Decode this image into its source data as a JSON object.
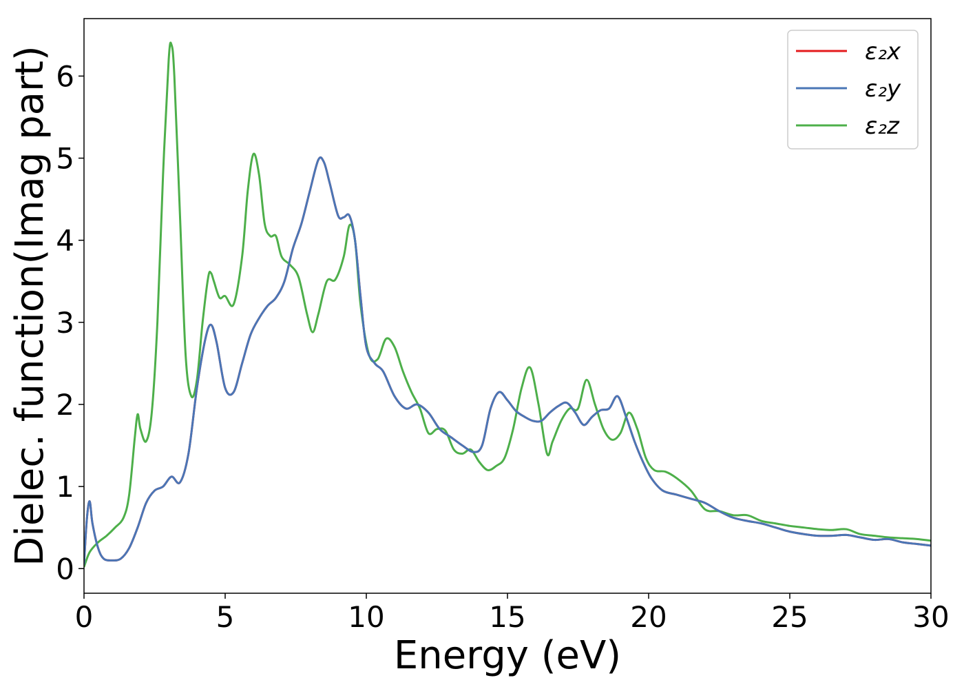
{
  "chart_data": {
    "type": "line",
    "xlabel": "Energy (eV)",
    "ylabel": "Dielec. function(Imag part)",
    "xlim": [
      0,
      30
    ],
    "ylim": [
      -0.3,
      6.7
    ],
    "xticks": [
      0,
      5,
      10,
      15,
      20,
      25,
      30
    ],
    "yticks": [
      0,
      1,
      2,
      3,
      4,
      5,
      6
    ],
    "grid": false,
    "legend_position": "top-right",
    "series": [
      {
        "name": "ε₂x",
        "color": "#e41a1c",
        "x": [
          0,
          0.1,
          0.2,
          0.3,
          0.5,
          0.7,
          1.0,
          1.3,
          1.6,
          1.9,
          2.2,
          2.5,
          2.8,
          3.1,
          3.4,
          3.7,
          4.0,
          4.3,
          4.5,
          4.7,
          5.0,
          5.3,
          5.6,
          5.9,
          6.2,
          6.5,
          6.8,
          7.1,
          7.4,
          7.7,
          8.0,
          8.3,
          8.5,
          8.7,
          9.0,
          9.2,
          9.4,
          9.6,
          9.8,
          10.0,
          10.3,
          10.6,
          11.0,
          11.4,
          11.8,
          12.2,
          12.6,
          13.0,
          13.4,
          13.8,
          14.1,
          14.4,
          14.7,
          15.0,
          15.3,
          15.6,
          15.9,
          16.2,
          16.5,
          16.8,
          17.1,
          17.4,
          17.7,
          18.0,
          18.3,
          18.6,
          18.9,
          19.2,
          19.5,
          19.8,
          20.1,
          20.5,
          21.0,
          21.5,
          22.0,
          22.5,
          23.0,
          23.5,
          24.0,
          24.5,
          25.0,
          25.5,
          26.0,
          26.5,
          27.0,
          27.5,
          28.0,
          28.5,
          29.0,
          29.5,
          30.0
        ],
        "y": [
          0.05,
          0.6,
          0.82,
          0.55,
          0.25,
          0.12,
          0.1,
          0.12,
          0.25,
          0.5,
          0.8,
          0.95,
          1.0,
          1.12,
          1.05,
          1.4,
          2.2,
          2.8,
          2.97,
          2.75,
          2.2,
          2.15,
          2.5,
          2.85,
          3.05,
          3.2,
          3.3,
          3.5,
          3.9,
          4.2,
          4.6,
          4.98,
          4.95,
          4.7,
          4.3,
          4.28,
          4.3,
          4.0,
          3.3,
          2.7,
          2.5,
          2.4,
          2.1,
          1.95,
          2.0,
          1.9,
          1.7,
          1.6,
          1.5,
          1.42,
          1.5,
          1.95,
          2.15,
          2.05,
          1.92,
          1.85,
          1.8,
          1.8,
          1.9,
          1.98,
          2.02,
          1.9,
          1.75,
          1.85,
          1.93,
          1.95,
          2.1,
          1.85,
          1.55,
          1.3,
          1.1,
          0.95,
          0.9,
          0.85,
          0.8,
          0.7,
          0.62,
          0.58,
          0.55,
          0.5,
          0.45,
          0.42,
          0.4,
          0.4,
          0.41,
          0.38,
          0.35,
          0.36,
          0.32,
          0.3,
          0.28
        ]
      },
      {
        "name": "ε₂y",
        "color": "#4a76b6",
        "x": [
          0,
          0.1,
          0.2,
          0.3,
          0.5,
          0.7,
          1.0,
          1.3,
          1.6,
          1.9,
          2.2,
          2.5,
          2.8,
          3.1,
          3.4,
          3.7,
          4.0,
          4.3,
          4.5,
          4.7,
          5.0,
          5.3,
          5.6,
          5.9,
          6.2,
          6.5,
          6.8,
          7.1,
          7.4,
          7.7,
          8.0,
          8.3,
          8.5,
          8.7,
          9.0,
          9.2,
          9.4,
          9.6,
          9.8,
          10.0,
          10.3,
          10.6,
          11.0,
          11.4,
          11.8,
          12.2,
          12.6,
          13.0,
          13.4,
          13.8,
          14.1,
          14.4,
          14.7,
          15.0,
          15.3,
          15.6,
          15.9,
          16.2,
          16.5,
          16.8,
          17.1,
          17.4,
          17.7,
          18.0,
          18.3,
          18.6,
          18.9,
          19.2,
          19.5,
          19.8,
          20.1,
          20.5,
          21.0,
          21.5,
          22.0,
          22.5,
          23.0,
          23.5,
          24.0,
          24.5,
          25.0,
          25.5,
          26.0,
          26.5,
          27.0,
          27.5,
          28.0,
          28.5,
          29.0,
          29.5,
          30.0
        ],
        "y": [
          0.05,
          0.6,
          0.82,
          0.55,
          0.25,
          0.12,
          0.1,
          0.12,
          0.25,
          0.5,
          0.8,
          0.95,
          1.0,
          1.12,
          1.05,
          1.4,
          2.2,
          2.8,
          2.97,
          2.75,
          2.2,
          2.15,
          2.5,
          2.85,
          3.05,
          3.2,
          3.3,
          3.5,
          3.9,
          4.2,
          4.6,
          4.98,
          4.95,
          4.7,
          4.3,
          4.28,
          4.3,
          4.0,
          3.3,
          2.7,
          2.5,
          2.4,
          2.1,
          1.95,
          2.0,
          1.9,
          1.7,
          1.6,
          1.5,
          1.42,
          1.5,
          1.95,
          2.15,
          2.05,
          1.92,
          1.85,
          1.8,
          1.8,
          1.9,
          1.98,
          2.02,
          1.9,
          1.75,
          1.85,
          1.93,
          1.95,
          2.1,
          1.85,
          1.55,
          1.3,
          1.1,
          0.95,
          0.9,
          0.85,
          0.8,
          0.7,
          0.62,
          0.58,
          0.55,
          0.5,
          0.45,
          0.42,
          0.4,
          0.4,
          0.41,
          0.38,
          0.35,
          0.36,
          0.32,
          0.3,
          0.28
        ]
      },
      {
        "name": "ε₂z",
        "color": "#4daf4a",
        "x": [
          0,
          0.2,
          0.5,
          0.8,
          1.1,
          1.4,
          1.6,
          1.8,
          1.9,
          2.0,
          2.2,
          2.4,
          2.6,
          2.8,
          3.0,
          3.1,
          3.2,
          3.4,
          3.6,
          3.8,
          4.0,
          4.2,
          4.4,
          4.5,
          4.6,
          4.8,
          5.0,
          5.3,
          5.6,
          5.8,
          6.0,
          6.2,
          6.4,
          6.6,
          6.8,
          7.0,
          7.3,
          7.6,
          7.9,
          8.1,
          8.3,
          8.6,
          8.9,
          9.2,
          9.4,
          9.6,
          9.8,
          10.1,
          10.4,
          10.7,
          11.0,
          11.3,
          11.6,
          11.9,
          12.2,
          12.5,
          12.8,
          13.1,
          13.4,
          13.7,
          14.0,
          14.3,
          14.6,
          14.9,
          15.2,
          15.5,
          15.8,
          16.1,
          16.4,
          16.6,
          16.9,
          17.2,
          17.5,
          17.8,
          18.1,
          18.4,
          18.7,
          19.0,
          19.3,
          19.6,
          19.9,
          20.2,
          20.6,
          21.0,
          21.5,
          22.0,
          22.5,
          23.0,
          23.5,
          24.0,
          24.5,
          25.0,
          25.5,
          26.0,
          26.5,
          27.0,
          27.5,
          28.0,
          28.5,
          29.0,
          29.5,
          30.0
        ],
        "y": [
          0.02,
          0.2,
          0.32,
          0.4,
          0.5,
          0.62,
          0.9,
          1.6,
          1.88,
          1.7,
          1.55,
          1.9,
          3.0,
          4.8,
          6.2,
          6.38,
          6.0,
          4.3,
          2.6,
          2.1,
          2.3,
          3.0,
          3.55,
          3.6,
          3.5,
          3.3,
          3.32,
          3.22,
          3.8,
          4.6,
          5.05,
          4.8,
          4.2,
          4.05,
          4.05,
          3.8,
          3.7,
          3.55,
          3.1,
          2.88,
          3.1,
          3.5,
          3.52,
          3.8,
          4.18,
          4.0,
          3.2,
          2.6,
          2.55,
          2.8,
          2.7,
          2.4,
          2.15,
          1.95,
          1.65,
          1.7,
          1.68,
          1.45,
          1.4,
          1.45,
          1.3,
          1.2,
          1.25,
          1.35,
          1.7,
          2.2,
          2.45,
          2.0,
          1.4,
          1.55,
          1.8,
          1.95,
          1.95,
          2.3,
          2.0,
          1.7,
          1.57,
          1.65,
          1.9,
          1.7,
          1.35,
          1.2,
          1.18,
          1.1,
          0.95,
          0.72,
          0.7,
          0.65,
          0.65,
          0.58,
          0.55,
          0.52,
          0.5,
          0.48,
          0.47,
          0.48,
          0.42,
          0.4,
          0.38,
          0.37,
          0.36,
          0.34
        ]
      }
    ]
  }
}
